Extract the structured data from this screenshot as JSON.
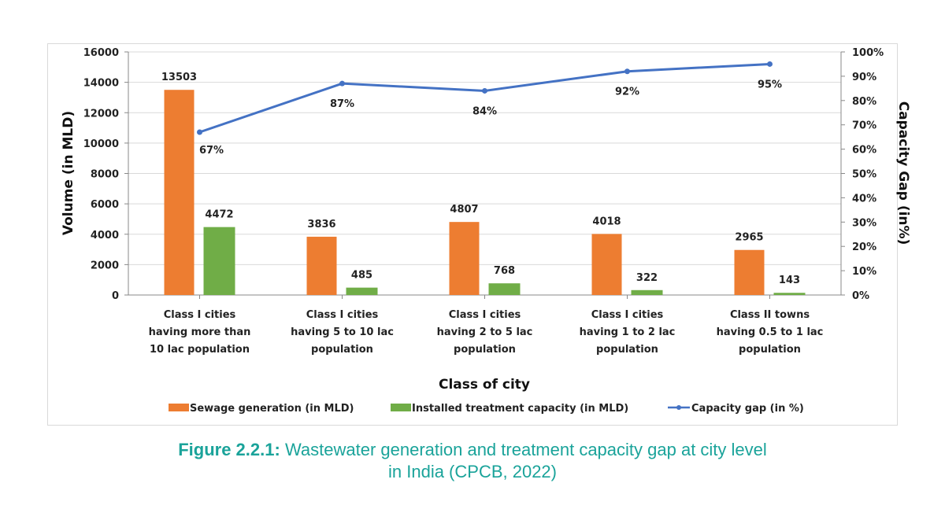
{
  "chart_data": {
    "type": "bar+line",
    "categories": [
      [
        "Class I cities",
        "having more than",
        "10 lac population"
      ],
      [
        "Class I cities",
        "having 5 to 10 lac",
        "population"
      ],
      [
        "Class I cities",
        "having 2 to 5 lac",
        "population"
      ],
      [
        "Class I cities",
        "having 1 to 2 lac",
        "population"
      ],
      [
        "Class II towns",
        "having 0.5 to 1 lac",
        "population"
      ]
    ],
    "series": [
      {
        "name": "Sewage generation (in MLD)",
        "type": "bar",
        "axis": "left",
        "color": "#ed7d31",
        "values": [
          13503,
          3836,
          4807,
          4018,
          2965
        ]
      },
      {
        "name": "Installed treatment capacity (in MLD)",
        "type": "bar",
        "axis": "left",
        "color": "#70ad47",
        "values": [
          4472,
          485,
          768,
          322,
          143
        ]
      },
      {
        "name": "Capacity gap (in %)",
        "type": "line",
        "axis": "right",
        "color": "#4472c4",
        "values": [
          67,
          87,
          84,
          92,
          95
        ]
      }
    ],
    "xlabel": "Class of city",
    "ylabel": "Volume (in MLD)",
    "y2label": "Capacity Gap (in%)",
    "ylim": [
      0,
      16000
    ],
    "yticks": [
      0,
      2000,
      4000,
      6000,
      8000,
      10000,
      12000,
      14000,
      16000
    ],
    "y2lim": [
      0,
      100
    ],
    "y2ticks": [
      "0%",
      "10%",
      "20%",
      "30%",
      "40%",
      "50%",
      "60%",
      "70%",
      "80%",
      "90%",
      "100%"
    ],
    "grid": true,
    "legend": "bottom"
  },
  "caption": {
    "label": "Figure 2.2.1:",
    "text": "Wastewater generation and treatment capacity gap at city level",
    "text2": "in India (CPCB, 2022)"
  }
}
